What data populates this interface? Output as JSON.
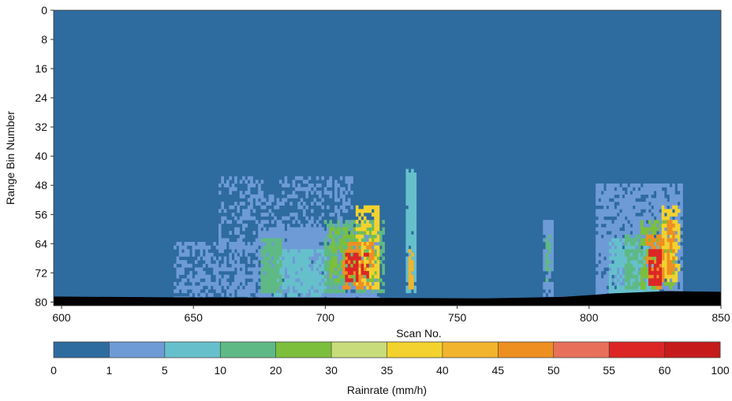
{
  "chart_data": {
    "type": "heatmap",
    "title": "",
    "xlabel": "Scan No.",
    "ylabel": "Range Bin Number",
    "xlim": [
      597,
      850
    ],
    "ylim": [
      0,
      81
    ],
    "y_inverted": true,
    "x_ticks": [
      600,
      650,
      700,
      750,
      800,
      850
    ],
    "y_ticks": [
      0,
      8,
      16,
      24,
      32,
      40,
      48,
      56,
      64,
      72,
      80
    ],
    "grid": false,
    "background_class": "0-1",
    "colorbar": {
      "label": "Rainrate (mm/h)",
      "placement": "bottom",
      "boundaries": [
        0,
        1,
        5,
        10,
        20,
        30,
        35,
        40,
        45,
        50,
        55,
        60,
        100
      ],
      "colors": [
        "#2e6b9e",
        "#6e9bd6",
        "#66c0cc",
        "#5fb985",
        "#7cbf3c",
        "#c8dc7a",
        "#f3d22e",
        "#f2b42d",
        "#ee8f22",
        "#e8705a",
        "#dc2626",
        "#c51b1b"
      ]
    },
    "ground_clutter": {
      "color": "#000000",
      "profile": [
        {
          "scan": 597,
          "top_bin": 78.5
        },
        {
          "scan": 640,
          "top_bin": 78.7
        },
        {
          "scan": 700,
          "top_bin": 78.8
        },
        {
          "scan": 760,
          "top_bin": 79.0
        },
        {
          "scan": 790,
          "top_bin": 78.6
        },
        {
          "scan": 810,
          "top_bin": 77.6
        },
        {
          "scan": 830,
          "top_bin": 77.0
        },
        {
          "scan": 850,
          "top_bin": 77.2
        }
      ]
    },
    "regions": [
      {
        "class": "1-5",
        "x": [
          643,
          676
        ],
        "bin": [
          64,
          79
        ],
        "density": 0.55
      },
      {
        "class": "1-5",
        "x": [
          660,
          710
        ],
        "bin": [
          46,
          66
        ],
        "density": 0.35
      },
      {
        "class": "1-5",
        "x": [
          676,
          720
        ],
        "bin": [
          60,
          79
        ],
        "density": 0.9
      },
      {
        "class": "5-10",
        "x": [
          681,
          700
        ],
        "bin": [
          66,
          78
        ],
        "density": 0.8
      },
      {
        "class": "10-20",
        "x": [
          676,
          683
        ],
        "bin": [
          63,
          77
        ],
        "density": 0.8
      },
      {
        "class": "10-20",
        "x": [
          700,
          722
        ],
        "bin": [
          58,
          77
        ],
        "density": 0.6
      },
      {
        "class": "20-30",
        "x": [
          702,
          720
        ],
        "bin": [
          60,
          74
        ],
        "density": 0.55
      },
      {
        "class": "35-40",
        "x": [
          712,
          720
        ],
        "bin": [
          54,
          76
        ],
        "density": 0.55
      },
      {
        "class": "45-50",
        "x": [
          707,
          718
        ],
        "bin": [
          64,
          76
        ],
        "density": 0.55
      },
      {
        "class": "55-60",
        "x": [
          708,
          716
        ],
        "bin": [
          67,
          74
        ],
        "density": 0.55
      },
      {
        "class": "5-10",
        "x": [
          731,
          734
        ],
        "bin": [
          44,
          77
        ],
        "density": 0.9
      },
      {
        "class": "40-45",
        "x": [
          732,
          733
        ],
        "bin": [
          66,
          76
        ],
        "density": 0.8
      },
      {
        "class": "1-5",
        "x": [
          783,
          786
        ],
        "bin": [
          58,
          78
        ],
        "density": 0.7
      },
      {
        "class": "10-20",
        "x": [
          784,
          785
        ],
        "bin": [
          62,
          74
        ],
        "density": 0.7
      },
      {
        "class": "1-5",
        "x": [
          803,
          835
        ],
        "bin": [
          48,
          78
        ],
        "density": 0.8
      },
      {
        "class": "5-10",
        "x": [
          808,
          826
        ],
        "bin": [
          63,
          77
        ],
        "density": 0.75
      },
      {
        "class": "10-20",
        "x": [
          814,
          820
        ],
        "bin": [
          62,
          76
        ],
        "density": 0.6
      },
      {
        "class": "20-30",
        "x": [
          820,
          832
        ],
        "bin": [
          58,
          76
        ],
        "density": 0.6
      },
      {
        "class": "35-40",
        "x": [
          828,
          834
        ],
        "bin": [
          54,
          74
        ],
        "density": 0.65
      },
      {
        "class": "45-50",
        "x": [
          822,
          828
        ],
        "bin": [
          62,
          76
        ],
        "density": 0.65
      },
      {
        "class": "55-60",
        "x": [
          823,
          827
        ],
        "bin": [
          66,
          75
        ],
        "density": 0.7
      },
      {
        "class": "45-50",
        "x": [
          830,
          832
        ],
        "bin": [
          58,
          72
        ],
        "density": 0.75
      }
    ]
  }
}
